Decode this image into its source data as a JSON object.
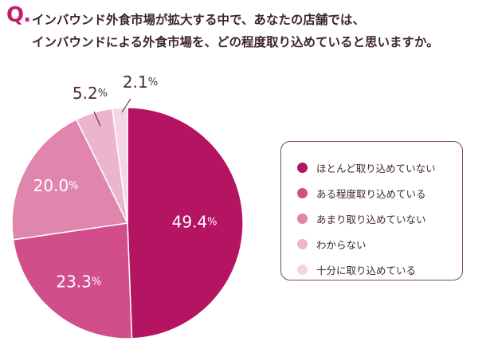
{
  "question": {
    "mark": "Q.",
    "line1": "インバウンド外食市場が拡大する中で、あなたの店舗では、",
    "line2": "インバウンドによる外食市場を、どの程度取り込めていると思いますか。"
  },
  "chart_data": {
    "type": "pie",
    "start_angle_deg": 0,
    "direction": "clockwise",
    "slices": [
      {
        "label": "ほとんど取り込めていない",
        "value": 49.4,
        "value_label": "49.4",
        "color": "#b51463",
        "text_color": "#ffffff"
      },
      {
        "label": "ある程度取り込めている",
        "value": 23.3,
        "value_label": "23.3",
        "color": "#d14e8a",
        "text_color": "#ffffff"
      },
      {
        "label": "あまり取り込めていない",
        "value": 20.0,
        "value_label": "20.0",
        "color": "#e085ad",
        "text_color": "#ffffff"
      },
      {
        "label": "わからない",
        "value": 5.2,
        "value_label": "5.2",
        "color": "#ecb4cd",
        "text_color": "#4a2a34"
      },
      {
        "label": "十分に取り込めている",
        "value": 2.1,
        "value_label": "2.1",
        "color": "#f5d5e3",
        "text_color": "#4a2a34"
      }
    ],
    "unit": "%",
    "legend_position": "right"
  }
}
